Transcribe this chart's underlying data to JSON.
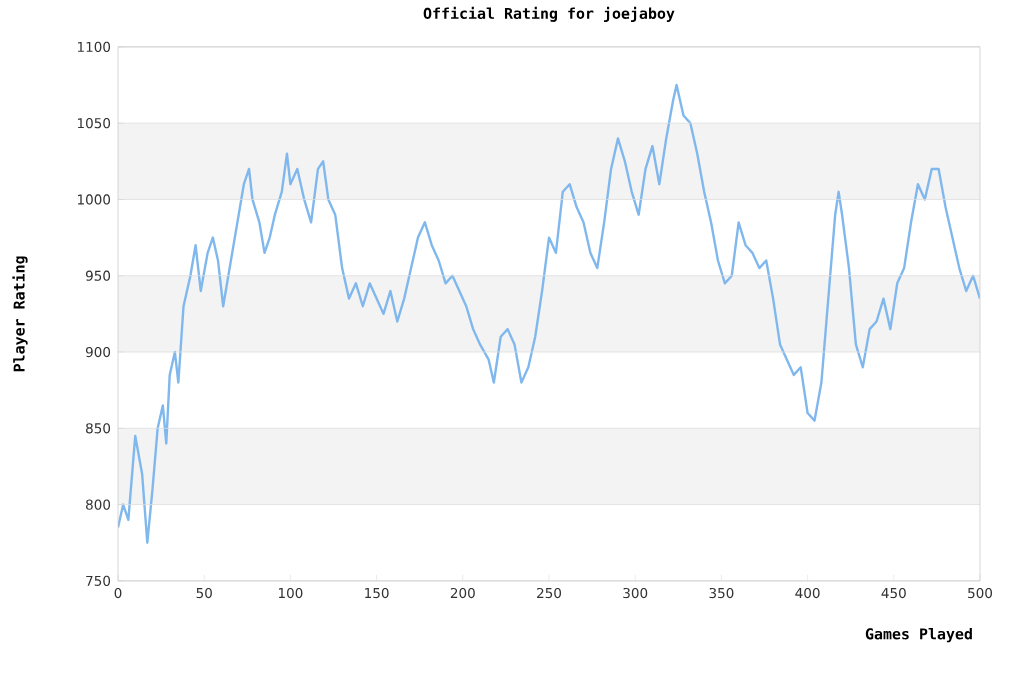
{
  "chart_data": {
    "type": "line",
    "title": "Official Rating for joejaboy",
    "xlabel": "Games Played",
    "ylabel": "Player Rating",
    "xlim": [
      0,
      500
    ],
    "ylim": [
      750,
      1100
    ],
    "xticks": [
      0,
      50,
      100,
      150,
      200,
      250,
      300,
      350,
      400,
      450,
      500
    ],
    "yticks": [
      750,
      800,
      850,
      900,
      950,
      1000,
      1050,
      1100
    ],
    "grid": "y",
    "marker": "none",
    "line_style": "solid",
    "bands": [
      {
        "axis": "y",
        "from": 800,
        "to": 850,
        "color": "#f3f3f3"
      },
      {
        "axis": "y",
        "from": 900,
        "to": 950,
        "color": "#f3f3f3"
      },
      {
        "axis": "y",
        "from": 1000,
        "to": 1050,
        "color": "#f3f3f3"
      }
    ],
    "series": [
      {
        "color": "#80b8ee",
        "x": [
          0,
          3,
          6,
          10,
          14,
          17,
          20,
          23,
          26,
          28,
          30,
          33,
          35,
          38,
          42,
          45,
          48,
          52,
          55,
          58,
          61,
          64,
          67,
          70,
          73,
          76,
          78,
          82,
          85,
          88,
          91,
          95,
          98,
          100,
          104,
          108,
          112,
          116,
          119,
          122,
          126,
          130,
          134,
          138,
          142,
          146,
          150,
          154,
          158,
          162,
          166,
          170,
          174,
          178,
          182,
          186,
          190,
          194,
          198,
          202,
          206,
          210,
          215,
          218,
          222,
          226,
          230,
          234,
          238,
          242,
          246,
          250,
          254,
          258,
          262,
          266,
          270,
          274,
          278,
          282,
          286,
          290,
          294,
          298,
          302,
          306,
          310,
          314,
          318,
          322,
          324,
          328,
          332,
          336,
          340,
          344,
          348,
          352,
          356,
          360,
          364,
          368,
          372,
          376,
          380,
          384,
          388,
          392,
          396,
          400,
          404,
          408,
          412,
          416,
          418,
          420,
          424,
          428,
          432,
          436,
          440,
          444,
          448,
          452,
          456,
          460,
          464,
          468,
          472,
          476,
          480,
          484,
          488,
          492,
          496,
          500
        ],
        "values": [
          785,
          800,
          790,
          845,
          820,
          775,
          810,
          850,
          865,
          840,
          885,
          900,
          880,
          930,
          950,
          970,
          940,
          965,
          975,
          960,
          930,
          950,
          970,
          990,
          1010,
          1020,
          1000,
          985,
          965,
          975,
          990,
          1005,
          1030,
          1010,
          1020,
          1000,
          985,
          1020,
          1025,
          1000,
          990,
          955,
          935,
          945,
          930,
          945,
          935,
          925,
          940,
          920,
          935,
          955,
          975,
          985,
          970,
          960,
          945,
          950,
          940,
          930,
          915,
          905,
          895,
          880,
          910,
          915,
          905,
          880,
          890,
          910,
          940,
          975,
          965,
          1005,
          1010,
          995,
          985,
          965,
          955,
          985,
          1020,
          1040,
          1025,
          1005,
          990,
          1020,
          1035,
          1010,
          1040,
          1065,
          1075,
          1055,
          1050,
          1030,
          1005,
          985,
          960,
          945,
          950,
          985,
          970,
          965,
          955,
          960,
          935,
          905,
          895,
          885,
          890,
          860,
          855,
          880,
          935,
          990,
          1005,
          990,
          955,
          905,
          890,
          915,
          920,
          935,
          915,
          945,
          955,
          985,
          1010,
          1000,
          1020,
          1020,
          995,
          975,
          955,
          940,
          950,
          935
        ]
      }
    ]
  }
}
